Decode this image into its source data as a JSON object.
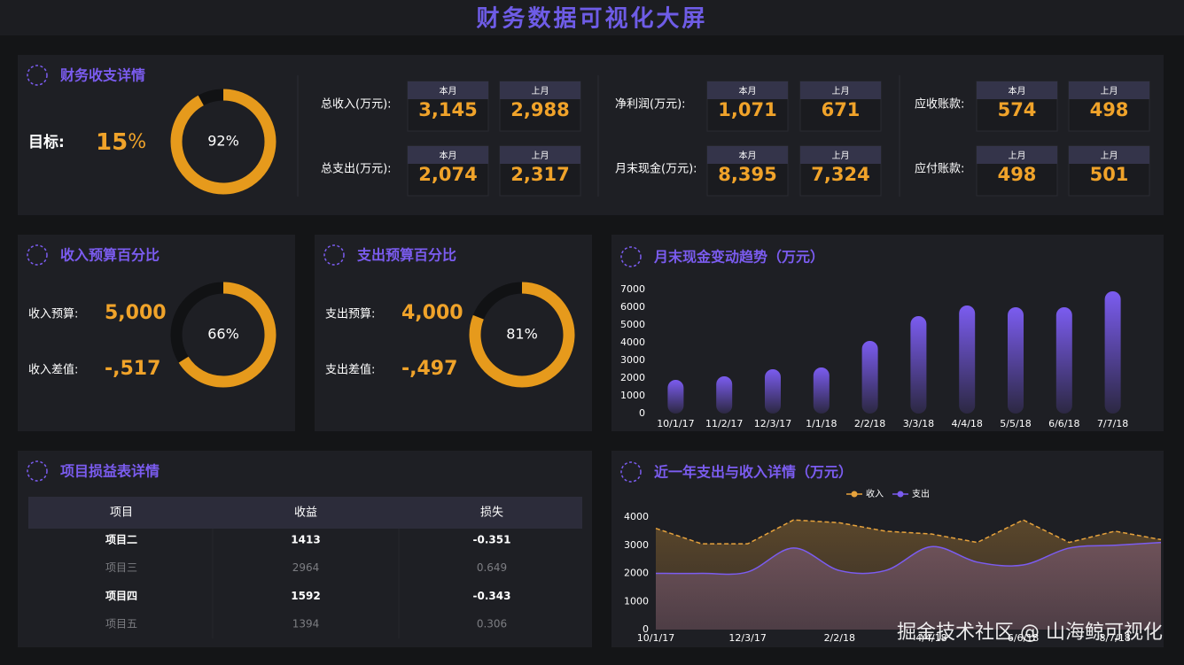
{
  "header": {
    "title": "财务数据可视化大屏"
  },
  "summary": {
    "title": "财务收支详情",
    "target_label": "目标:",
    "target_value": "15",
    "target_unit": "%",
    "groups": [
      {
        "rows": [
          {
            "label": "总收入(万元):",
            "cards": [
              {
                "period": "本月",
                "value": "3,145"
              },
              {
                "period": "上月",
                "value": "2,988"
              }
            ]
          },
          {
            "label": "总支出(万元):",
            "cards": [
              {
                "period": "本月",
                "value": "2,074"
              },
              {
                "period": "上月",
                "value": "2,317"
              }
            ]
          }
        ]
      },
      {
        "rows": [
          {
            "label": "净利润(万元):",
            "cards": [
              {
                "period": "本月",
                "value": "1,071"
              },
              {
                "period": "上月",
                "value": "671"
              }
            ]
          },
          {
            "label": "月末现金(万元):",
            "cards": [
              {
                "period": "本月",
                "value": "8,395"
              },
              {
                "period": "上月",
                "value": "7,324"
              }
            ]
          }
        ]
      },
      {
        "rows": [
          {
            "label": "应收账款:",
            "cards": [
              {
                "period": "本月",
                "value": "574"
              },
              {
                "period": "上月",
                "value": "498"
              }
            ]
          },
          {
            "label": "应付账款:",
            "cards": [
              {
                "period": "上月",
                "value": "498"
              },
              {
                "period": "上月",
                "value": "501"
              }
            ]
          }
        ]
      }
    ]
  },
  "budgets": [
    {
      "title": "收入预算百分比",
      "rows": [
        {
          "label": "收入预算:",
          "value": "5,000"
        },
        {
          "label": "收入差值:",
          "value": "-,517"
        }
      ]
    },
    {
      "title": "支出预算百分比",
      "rows": [
        {
          "label": "支出预算:",
          "value": "4,000"
        },
        {
          "label": "支出差值:",
          "value": "-,497"
        }
      ]
    }
  ],
  "table": {
    "title": "项目损益表详情",
    "columns": [
      "项目",
      "收益",
      "损失"
    ],
    "rows": [
      [
        "项目二",
        "1413",
        "-0.351"
      ],
      [
        "项目三",
        "2964",
        "0.649"
      ],
      [
        "项目四",
        "1592",
        "-0.343"
      ],
      [
        "项目五",
        "1394",
        "0.306"
      ]
    ]
  },
  "watermark": "掘金技术社区 @ 山海鲸可视化",
  "chart_data": [
    {
      "type": "gauge",
      "value": 92,
      "value_label": "92%",
      "color": "#e69a1c"
    },
    {
      "type": "gauge",
      "value": 66,
      "value_label": "66%",
      "color": "#e69a1c"
    },
    {
      "type": "gauge",
      "value": 81,
      "value_label": "81%",
      "color": "#e69a1c"
    },
    {
      "type": "bar",
      "title": "月末现金变动趋势（万元）",
      "categories": [
        "10/1/17",
        "11/2/17",
        "12/3/17",
        "1/1/18",
        "2/2/18",
        "3/3/18",
        "4/4/18",
        "5/5/18",
        "6/6/18",
        "7/7/18"
      ],
      "values": [
        1900,
        2100,
        2500,
        2600,
        4100,
        5500,
        6100,
        6000,
        6000,
        6900
      ],
      "color": "#7b5cf0",
      "ylim": [
        0,
        7000
      ],
      "yticks": [
        0,
        1000,
        2000,
        3000,
        4000,
        5000,
        6000,
        7000
      ]
    },
    {
      "type": "area",
      "title": "近一年支出与收入详情（万元）",
      "categories": [
        "10/1/17",
        null,
        "12/3/17",
        null,
        "2/2/18",
        null,
        "4/4/18",
        null,
        "6/6/18",
        null,
        "8/7/18",
        null
      ],
      "series": [
        {
          "name": "收入",
          "color": "#e6a23c",
          "values": [
            3600,
            3050,
            3050,
            3900,
            3800,
            3500,
            3400,
            3100,
            3900,
            3100,
            3500,
            3200
          ]
        },
        {
          "name": "支出",
          "color": "#7b5cf0",
          "values": [
            2000,
            2000,
            2050,
            2900,
            2100,
            2100,
            2950,
            2400,
            2300,
            2900,
            3000,
            3100
          ]
        }
      ],
      "ylim": [
        0,
        4000
      ],
      "yticks": [
        0,
        1000,
        2000,
        3000,
        4000
      ],
      "legend": "top"
    }
  ]
}
